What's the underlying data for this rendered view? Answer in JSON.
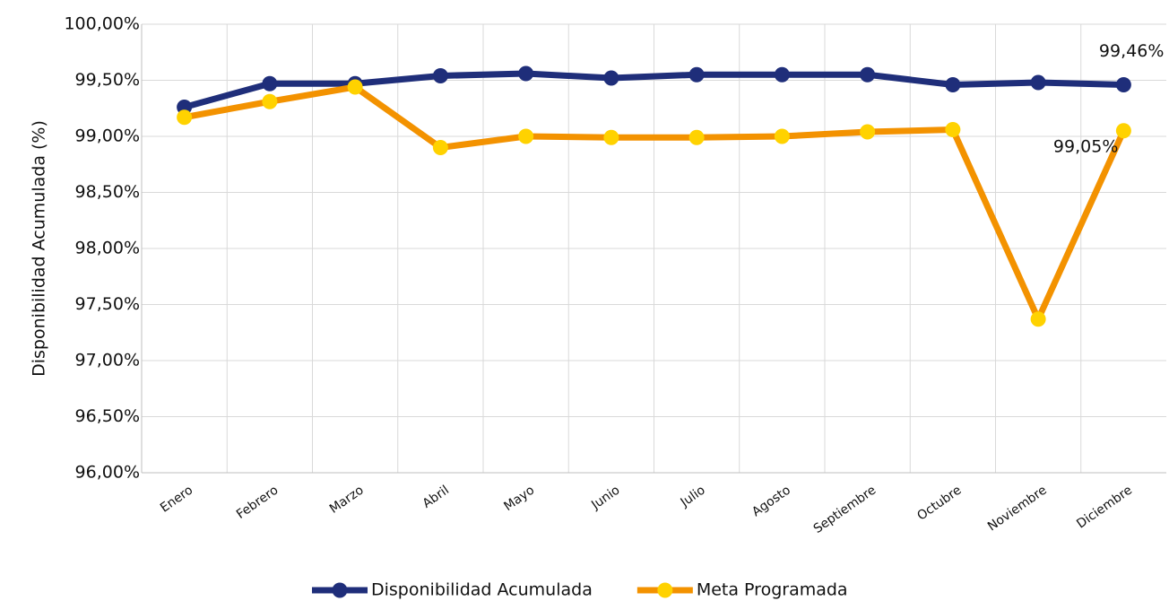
{
  "chart_data": {
    "type": "line",
    "y_label": "Disponibilidad Acumulada (%)",
    "categories": [
      "Enero",
      "Febrero",
      "Marzo",
      "Abril",
      "Mayo",
      "Junio",
      "Julio",
      "Agosto",
      "Septiembre",
      "Octubre",
      "Noviembre",
      "Diciembre"
    ],
    "series": [
      {
        "name": "Disponibilidad Acumulada",
        "color": "#1f2e7a",
        "marker_color": "#1f2e7a",
        "values": [
          99.26,
          99.47,
          99.47,
          99.54,
          99.56,
          99.52,
          99.55,
          99.55,
          99.55,
          99.46,
          99.48,
          99.46
        ],
        "value_labels": [
          null,
          null,
          null,
          null,
          null,
          null,
          null,
          null,
          null,
          null,
          null,
          "99,46%"
        ]
      },
      {
        "name": "Meta Programada",
        "color": "#f39200",
        "marker_color": "#ffd200",
        "values": [
          99.17,
          99.31,
          99.44,
          98.9,
          99.0,
          98.99,
          98.99,
          99.0,
          99.04,
          99.06,
          97.37,
          99.05
        ],
        "value_labels": [
          null,
          null,
          null,
          null,
          null,
          null,
          null,
          null,
          null,
          null,
          null,
          "99,05%"
        ]
      }
    ],
    "ylim": [
      96,
      100
    ],
    "yticks": [
      {
        "value": 96,
        "label": "96,00%"
      },
      {
        "value": 96.5,
        "label": "96,50%"
      },
      {
        "value": 97,
        "label": "97,00%"
      },
      {
        "value": 97.5,
        "label": "97,50%"
      },
      {
        "value": 98,
        "label": "98,00%"
      },
      {
        "value": 98.5,
        "label": "98,50%"
      },
      {
        "value": 99,
        "label": "99,00%"
      },
      {
        "value": 99.5,
        "label": "99,50%"
      },
      {
        "value": 100,
        "label": "100,00%"
      }
    ],
    "grid": true,
    "legend": "bottom"
  }
}
